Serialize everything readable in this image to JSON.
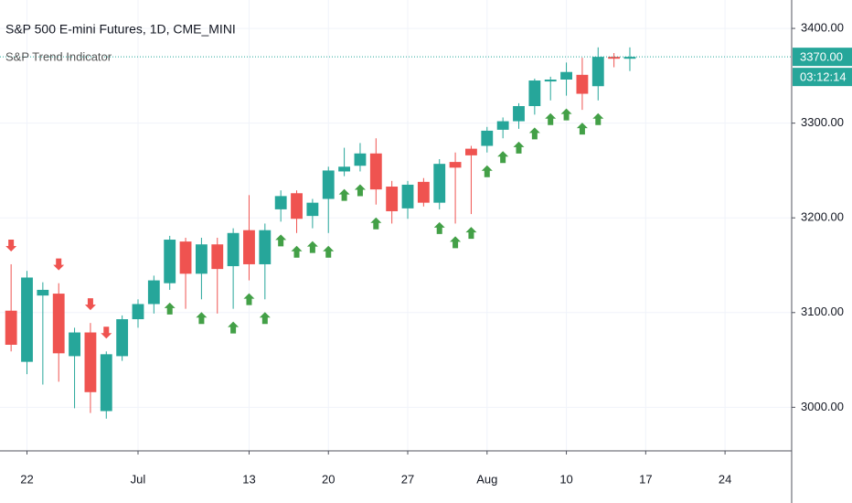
{
  "chart_data": {
    "type": "candlestick",
    "title": "S&P 500 E-mini Futures, 1D, CME_MINI",
    "subtitle": "S&P Trend Indicator",
    "up_color": "#26a69a",
    "down_color": "#ef5350",
    "up_signal_color": "#43a047",
    "down_signal_color": "#ef5350",
    "grid": true,
    "open": [
      3102,
      3048,
      3118,
      3120,
      3054,
      3079,
      2996,
      3054,
      3093,
      3109,
      3131,
      3175,
      3141,
      3172,
      3149,
      3187,
      3151,
      3209,
      3226,
      3202,
      3220,
      3249,
      3255,
      3268,
      3233,
      3210,
      3238,
      3216,
      3259,
      3273,
      3276,
      3293,
      3302,
      3318,
      3344,
      3346,
      3351,
      3339,
      3370,
      3368
    ],
    "high": [
      3151,
      3144,
      3132,
      3131,
      3084,
      3089,
      3059,
      3097,
      3114,
      3139,
      3181,
      3179,
      3179,
      3179,
      3189,
      3224,
      3194,
      3229,
      3229,
      3220,
      3254,
      3274,
      3279,
      3284,
      3239,
      3239,
      3242,
      3262,
      3269,
      3276,
      3296,
      3306,
      3321,
      3347,
      3349,
      3364,
      3369,
      3380,
      3374,
      3380
    ],
    "low": [
      3059,
      3035,
      3024,
      3027,
      2999,
      2994,
      2988,
      3049,
      3084,
      3099,
      3124,
      3104,
      3114,
      3099,
      3104,
      3134,
      3114,
      3196,
      3184,
      3189,
      3184,
      3244,
      3249,
      3214,
      3194,
      3199,
      3212,
      3209,
      3194,
      3204,
      3269,
      3284,
      3294,
      3309,
      3324,
      3329,
      3314,
      3324,
      3359,
      3355
    ],
    "close": [
      3066,
      3137,
      3124,
      3057,
      3079,
      3016,
      3056,
      3093,
      3109,
      3134,
      3177,
      3141,
      3172,
      3146,
      3184,
      3151,
      3187,
      3223,
      3199,
      3216,
      3250,
      3254,
      3268,
      3230,
      3207,
      3235,
      3216,
      3257,
      3253,
      3266,
      3292,
      3302,
      3318,
      3345,
      3346,
      3354,
      3331,
      3370,
      3368,
      3370
    ],
    "signals": [
      "down",
      null,
      null,
      "down",
      null,
      "down",
      "down",
      null,
      null,
      null,
      "up",
      null,
      "up",
      null,
      "up",
      "up",
      "up",
      "up",
      "up",
      "up",
      "up",
      "up",
      "up",
      "up",
      null,
      null,
      null,
      "up",
      "up",
      "up",
      "up",
      "up",
      "up",
      "up",
      "up",
      "up",
      "up",
      "up",
      null,
      null
    ],
    "xlim": [
      -0.7,
      49.2
    ],
    "xticks": [
      {
        "value": 1,
        "label": "22"
      },
      {
        "value": 8,
        "label": "Jul"
      },
      {
        "value": 15,
        "label": "13"
      },
      {
        "value": 20,
        "label": "20"
      },
      {
        "value": 25,
        "label": "27"
      },
      {
        "value": 30,
        "label": "Aug"
      },
      {
        "value": 35,
        "label": "10"
      },
      {
        "value": 40,
        "label": "17"
      },
      {
        "value": 45,
        "label": "24"
      }
    ],
    "ylim": [
      2954,
      3430
    ],
    "yticks": [
      {
        "value": 3000,
        "label": "3000.00"
      },
      {
        "value": 3100,
        "label": "3100.00"
      },
      {
        "value": 3200,
        "label": "3200.00"
      },
      {
        "value": 3300,
        "label": "3300.00"
      },
      {
        "value": 3400,
        "label": "3400.00"
      }
    ],
    "last_price": {
      "value": 3370,
      "label": "3370.00"
    },
    "countdown": "03:12:14"
  }
}
